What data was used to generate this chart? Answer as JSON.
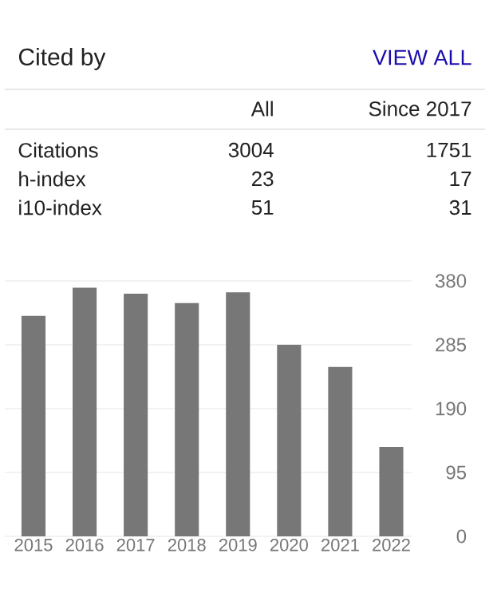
{
  "chart_data": {
    "type": "bar",
    "title": "Cited by",
    "annotations": [
      "VIEW ALL",
      "All",
      "Since 2017",
      "Citations",
      "3004",
      "1751",
      "h-index",
      "23",
      "17",
      "i10-index",
      "51",
      "31"
    ],
    "categories": [
      "2015",
      "2016",
      "2017",
      "2018",
      "2019",
      "2020",
      "2021",
      "2022"
    ],
    "values": [
      328,
      370,
      361,
      347,
      363,
      285,
      252,
      133
    ],
    "color": "#777777",
    "ylim": [
      0,
      380
    ],
    "yticks": [
      0,
      95,
      190,
      285,
      380
    ],
    "grid": "y"
  }
}
